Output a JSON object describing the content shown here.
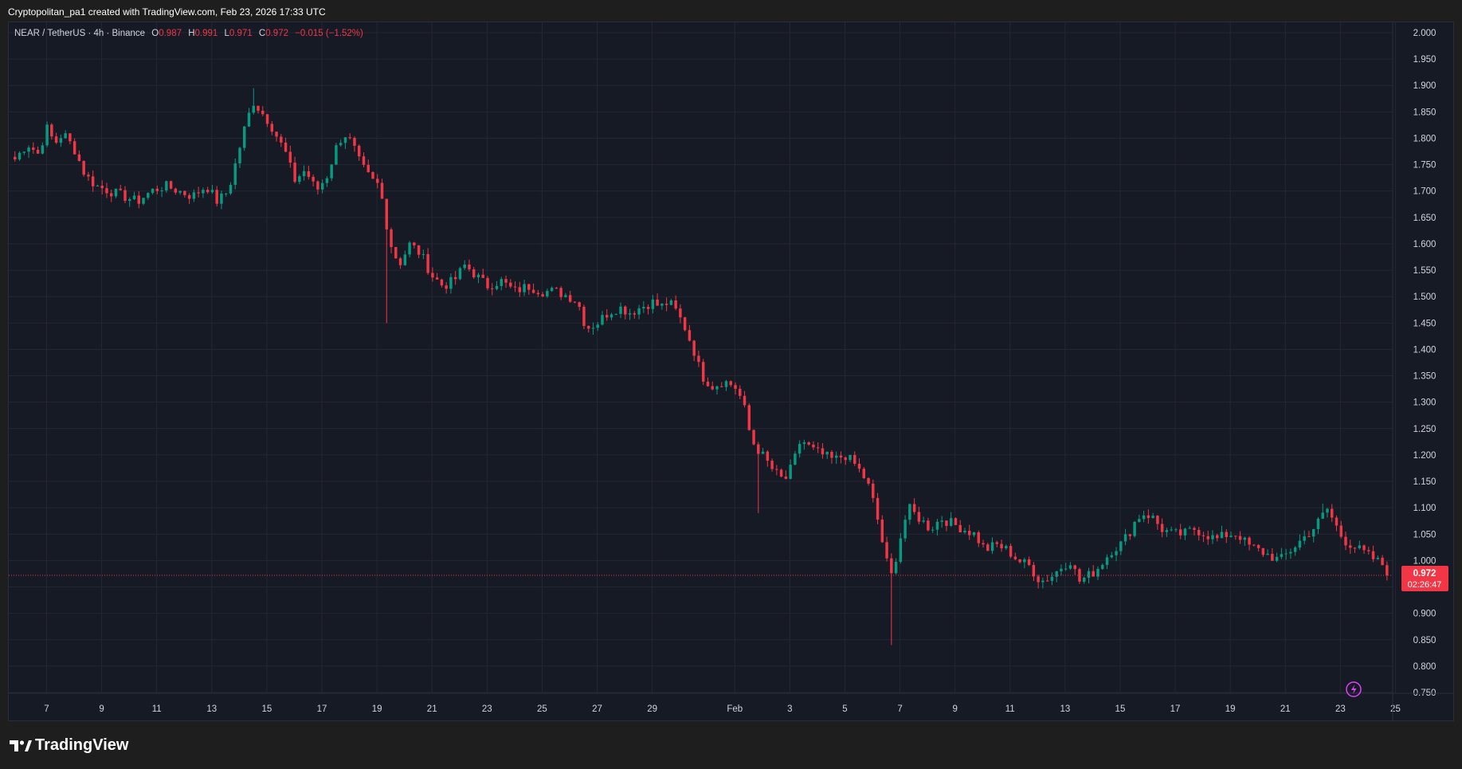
{
  "header": {
    "attribution": "Cryptopolitan_pa1 created with TradingView.com, Feb 23, 2026 17:33 UTC"
  },
  "legend": {
    "symbol": "NEAR / TetherUS · 4h · Binance",
    "o_label": "O",
    "o_value": "0.987",
    "h_label": "H",
    "h_value": "0.991",
    "l_label": "L",
    "l_value": "0.971",
    "c_label": "C",
    "c_value": "0.972",
    "change": "−0.015 (−1.52%)"
  },
  "price_label": {
    "price": "0.972",
    "countdown": "02:26:47"
  },
  "brand": {
    "name": "TradingView"
  },
  "colors": {
    "up": "#089981",
    "down": "#f23645",
    "background": "#161a25",
    "grid": "#242733",
    "axis_text": "#d1d4dc",
    "price_line": "#f23645"
  },
  "chart_data": {
    "type": "candlestick",
    "interval": "4h",
    "ylim": [
      0.75,
      2.0
    ],
    "y_ticks": [
      "2.000",
      "1.950",
      "1.900",
      "1.850",
      "1.800",
      "1.750",
      "1.700",
      "1.650",
      "1.600",
      "1.550",
      "1.500",
      "1.450",
      "1.400",
      "1.350",
      "1.300",
      "1.250",
      "1.200",
      "1.150",
      "1.100",
      "1.050",
      "1.000",
      "0.950",
      "0.900",
      "0.850",
      "0.800",
      "0.750"
    ],
    "x_ticks": [
      "7",
      "9",
      "11",
      "13",
      "15",
      "17",
      "19",
      "21",
      "23",
      "25",
      "27",
      "29",
      "Feb",
      "3",
      "5",
      "7",
      "9",
      "11",
      "13",
      "15",
      "17",
      "19",
      "21",
      "23",
      "25"
    ],
    "x_tick_days": [
      6,
      8,
      10,
      12,
      14,
      16,
      18,
      20,
      22,
      24,
      26,
      28,
      31,
      33,
      35,
      37,
      39,
      41,
      43,
      45,
      47,
      49,
      51,
      53,
      55
    ],
    "x_start_day": 4.85,
    "candle_interval_days": 0.1667,
    "last_price": 0.972,
    "close_path": [
      [
        4.85,
        1.76
      ],
      [
        5.3,
        1.79
      ],
      [
        5.7,
        1.77
      ],
      [
        6.0,
        1.82
      ],
      [
        6.3,
        1.79
      ],
      [
        6.6,
        1.81
      ],
      [
        7.0,
        1.78
      ],
      [
        7.4,
        1.73
      ],
      [
        7.8,
        1.71
      ],
      [
        8.3,
        1.7
      ],
      [
        8.8,
        1.69
      ],
      [
        9.3,
        1.68
      ],
      [
        9.8,
        1.7
      ],
      [
        10.3,
        1.71
      ],
      [
        10.8,
        1.7
      ],
      [
        11.3,
        1.69
      ],
      [
        11.8,
        1.71
      ],
      [
        12.2,
        1.68
      ],
      [
        12.6,
        1.7
      ],
      [
        12.9,
        1.76
      ],
      [
        13.2,
        1.82
      ],
      [
        13.5,
        1.87
      ],
      [
        13.8,
        1.85
      ],
      [
        14.1,
        1.83
      ],
      [
        14.4,
        1.8
      ],
      [
        14.7,
        1.77
      ],
      [
        15.0,
        1.72
      ],
      [
        15.4,
        1.74
      ],
      [
        15.8,
        1.7
      ],
      [
        16.2,
        1.73
      ],
      [
        16.5,
        1.78
      ],
      [
        16.8,
        1.81
      ],
      [
        17.1,
        1.79
      ],
      [
        17.4,
        1.75
      ],
      [
        17.8,
        1.72
      ],
      [
        18.1,
        1.71
      ],
      [
        18.3,
        1.65
      ],
      [
        18.5,
        1.6
      ],
      [
        18.8,
        1.56
      ],
      [
        19.2,
        1.6
      ],
      [
        19.6,
        1.58
      ],
      [
        20.0,
        1.54
      ],
      [
        20.4,
        1.52
      ],
      [
        20.8,
        1.53
      ],
      [
        21.2,
        1.56
      ],
      [
        21.6,
        1.54
      ],
      [
        22.0,
        1.52
      ],
      [
        22.5,
        1.53
      ],
      [
        23.0,
        1.51
      ],
      [
        23.5,
        1.52
      ],
      [
        24.0,
        1.51
      ],
      [
        24.5,
        1.51
      ],
      [
        25.0,
        1.5
      ],
      [
        25.3,
        1.49
      ],
      [
        25.6,
        1.44
      ],
      [
        26.0,
        1.45
      ],
      [
        26.4,
        1.47
      ],
      [
        26.8,
        1.48
      ],
      [
        27.2,
        1.47
      ],
      [
        27.6,
        1.48
      ],
      [
        28.0,
        1.49
      ],
      [
        28.3,
        1.48
      ],
      [
        28.6,
        1.49
      ],
      [
        28.9,
        1.47
      ],
      [
        29.2,
        1.44
      ],
      [
        29.5,
        1.4
      ],
      [
        29.8,
        1.35
      ],
      [
        30.2,
        1.33
      ],
      [
        30.6,
        1.34
      ],
      [
        31.0,
        1.33
      ],
      [
        31.3,
        1.3
      ],
      [
        31.5,
        1.25
      ],
      [
        31.7,
        1.22
      ],
      [
        32.0,
        1.2
      ],
      [
        32.4,
        1.17
      ],
      [
        32.8,
        1.15
      ],
      [
        33.1,
        1.18
      ],
      [
        33.4,
        1.23
      ],
      [
        33.8,
        1.21
      ],
      [
        34.2,
        1.2
      ],
      [
        34.6,
        1.19
      ],
      [
        35.0,
        1.2
      ],
      [
        35.4,
        1.18
      ],
      [
        35.8,
        1.15
      ],
      [
        36.1,
        1.1
      ],
      [
        36.3,
        1.05
      ],
      [
        36.5,
        1.0
      ],
      [
        36.7,
        0.97
      ],
      [
        37.0,
        1.04
      ],
      [
        37.3,
        1.1
      ],
      [
        37.7,
        1.08
      ],
      [
        38.1,
        1.06
      ],
      [
        38.5,
        1.08
      ],
      [
        38.9,
        1.07
      ],
      [
        39.3,
        1.06
      ],
      [
        39.7,
        1.05
      ],
      [
        40.1,
        1.02
      ],
      [
        40.5,
        1.03
      ],
      [
        40.9,
        1.02
      ],
      [
        41.3,
        1.0
      ],
      [
        41.7,
        0.99
      ],
      [
        42.1,
        0.96
      ],
      [
        42.5,
        0.97
      ],
      [
        42.9,
        0.99
      ],
      [
        43.2,
        1.0
      ],
      [
        43.5,
        0.96
      ],
      [
        43.8,
        0.97
      ],
      [
        44.1,
        0.98
      ],
      [
        44.4,
        1.0
      ],
      [
        44.7,
        1.02
      ],
      [
        45.0,
        1.03
      ],
      [
        45.3,
        1.05
      ],
      [
        45.6,
        1.08
      ],
      [
        45.9,
        1.09
      ],
      [
        46.2,
        1.08
      ],
      [
        46.5,
        1.06
      ],
      [
        46.9,
        1.05
      ],
      [
        47.3,
        1.05
      ],
      [
        47.7,
        1.06
      ],
      [
        48.1,
        1.05
      ],
      [
        48.5,
        1.04
      ],
      [
        48.9,
        1.05
      ],
      [
        49.3,
        1.05
      ],
      [
        49.6,
        1.03
      ],
      [
        50.0,
        1.02
      ],
      [
        50.4,
        1.01
      ],
      [
        50.8,
        1.0
      ],
      [
        51.2,
        1.02
      ],
      [
        51.6,
        1.04
      ],
      [
        52.0,
        1.06
      ],
      [
        52.3,
        1.08
      ],
      [
        52.5,
        1.1
      ],
      [
        52.8,
        1.07
      ],
      [
        53.1,
        1.04
      ],
      [
        53.4,
        1.03
      ],
      [
        53.7,
        1.02
      ],
      [
        54.0,
        1.01
      ],
      [
        54.3,
        1.0
      ],
      [
        54.6,
        0.99
      ],
      [
        54.8,
        0.972
      ]
    ],
    "notable_wicks": [
      {
        "day": 18.4,
        "low": 1.45
      },
      {
        "day": 31.9,
        "low": 1.09
      },
      {
        "day": 36.7,
        "low": 0.84
      },
      {
        "day": 13.5,
        "high": 1.895
      },
      {
        "day": 52.4,
        "high": 1.108
      }
    ]
  }
}
